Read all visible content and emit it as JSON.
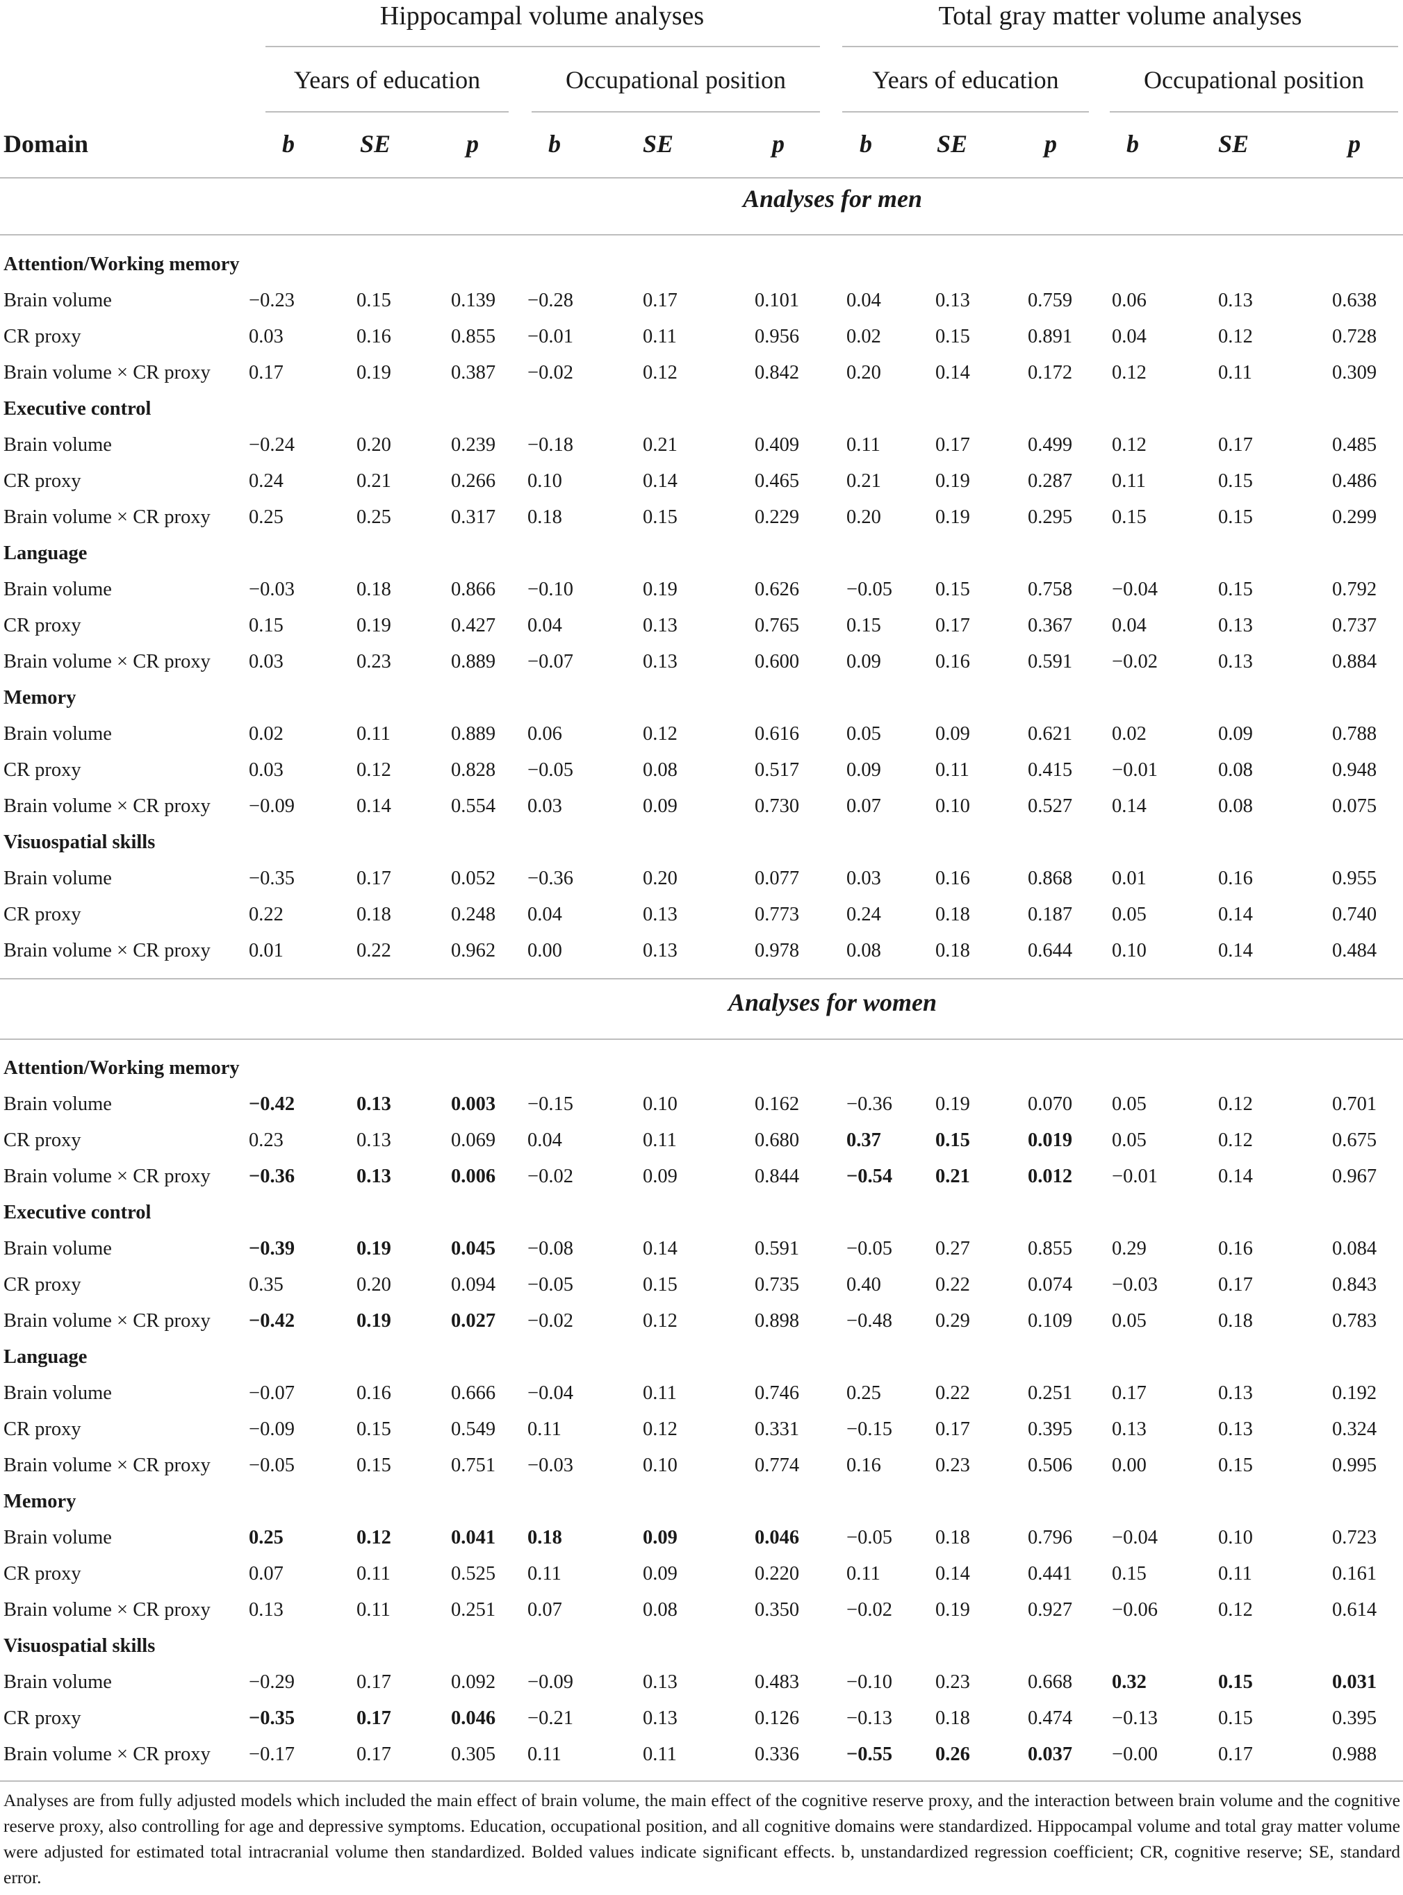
{
  "header": {
    "groups": [
      "Hippocampal volume analyses",
      "Total gray matter volume analyses"
    ],
    "subgroups": [
      "Years of education",
      "Occupational position",
      "Years of education",
      "Occupational position"
    ],
    "domain_label": "Domain",
    "stat_labels": [
      "b",
      "SE",
      "p",
      "b",
      "SE",
      "p",
      "b",
      "SE",
      "p",
      "b",
      "SE",
      "p"
    ]
  },
  "sections": [
    {
      "title": "Analyses for men",
      "domains": [
        {
          "name": "Attention/Working memory",
          "rows": [
            {
              "label": "Brain volume",
              "values": [
                "−0.23",
                "0.15",
                "0.139",
                "−0.28",
                "0.17",
                "0.101",
                "0.04",
                "0.13",
                "0.759",
                "0.06",
                "0.13",
                "0.638"
              ],
              "bold": []
            },
            {
              "label": "CR proxy",
              "values": [
                "0.03",
                "0.16",
                "0.855",
                "−0.01",
                "0.11",
                "0.956",
                "0.02",
                "0.15",
                "0.891",
                "0.04",
                "0.12",
                "0.728"
              ],
              "bold": []
            },
            {
              "label": "Brain volume × CR proxy",
              "values": [
                "0.17",
                "0.19",
                "0.387",
                "−0.02",
                "0.12",
                "0.842",
                "0.20",
                "0.14",
                "0.172",
                "0.12",
                "0.11",
                "0.309"
              ],
              "bold": []
            }
          ]
        },
        {
          "name": "Executive control",
          "rows": [
            {
              "label": "Brain volume",
              "values": [
                "−0.24",
                "0.20",
                "0.239",
                "−0.18",
                "0.21",
                "0.409",
                "0.11",
                "0.17",
                "0.499",
                "0.12",
                "0.17",
                "0.485"
              ],
              "bold": []
            },
            {
              "label": "CR proxy",
              "values": [
                "0.24",
                "0.21",
                "0.266",
                "0.10",
                "0.14",
                "0.465",
                "0.21",
                "0.19",
                "0.287",
                "0.11",
                "0.15",
                "0.486"
              ],
              "bold": []
            },
            {
              "label": "Brain volume × CR proxy",
              "values": [
                "0.25",
                "0.25",
                "0.317",
                "0.18",
                "0.15",
                "0.229",
                "0.20",
                "0.19",
                "0.295",
                "0.15",
                "0.15",
                "0.299"
              ],
              "bold": []
            }
          ]
        },
        {
          "name": "Language",
          "rows": [
            {
              "label": "Brain volume",
              "values": [
                "−0.03",
                "0.18",
                "0.866",
                "−0.10",
                "0.19",
                "0.626",
                "−0.05",
                "0.15",
                "0.758",
                "−0.04",
                "0.15",
                "0.792"
              ],
              "bold": []
            },
            {
              "label": "CR proxy",
              "values": [
                "0.15",
                "0.19",
                "0.427",
                "0.04",
                "0.13",
                "0.765",
                "0.15",
                "0.17",
                "0.367",
                "0.04",
                "0.13",
                "0.737"
              ],
              "bold": []
            },
            {
              "label": "Brain volume × CR proxy",
              "values": [
                "0.03",
                "0.23",
                "0.889",
                "−0.07",
                "0.13",
                "0.600",
                "0.09",
                "0.16",
                "0.591",
                "−0.02",
                "0.13",
                "0.884"
              ],
              "bold": []
            }
          ]
        },
        {
          "name": "Memory",
          "rows": [
            {
              "label": "Brain volume",
              "values": [
                "0.02",
                "0.11",
                "0.889",
                "0.06",
                "0.12",
                "0.616",
                "0.05",
                "0.09",
                "0.621",
                "0.02",
                "0.09",
                "0.788"
              ],
              "bold": []
            },
            {
              "label": "CR proxy",
              "values": [
                "0.03",
                "0.12",
                "0.828",
                "−0.05",
                "0.08",
                "0.517",
                "0.09",
                "0.11",
                "0.415",
                "−0.01",
                "0.08",
                "0.948"
              ],
              "bold": []
            },
            {
              "label": "Brain volume × CR proxy",
              "values": [
                "−0.09",
                "0.14",
                "0.554",
                "0.03",
                "0.09",
                "0.730",
                "0.07",
                "0.10",
                "0.527",
                "0.14",
                "0.08",
                "0.075"
              ],
              "bold": []
            }
          ]
        },
        {
          "name": "Visuospatial skills",
          "rows": [
            {
              "label": "Brain volume",
              "values": [
                "−0.35",
                "0.17",
                "0.052",
                "−0.36",
                "0.20",
                "0.077",
                "0.03",
                "0.16",
                "0.868",
                "0.01",
                "0.16",
                "0.955"
              ],
              "bold": []
            },
            {
              "label": "CR proxy",
              "values": [
                "0.22",
                "0.18",
                "0.248",
                "0.04",
                "0.13",
                "0.773",
                "0.24",
                "0.18",
                "0.187",
                "0.05",
                "0.14",
                "0.740"
              ],
              "bold": []
            },
            {
              "label": "Brain volume × CR proxy",
              "values": [
                "0.01",
                "0.22",
                "0.962",
                "0.00",
                "0.13",
                "0.978",
                "0.08",
                "0.18",
                "0.644",
                "0.10",
                "0.14",
                "0.484"
              ],
              "bold": []
            }
          ]
        }
      ]
    },
    {
      "title": "Analyses for women",
      "domains": [
        {
          "name": "Attention/Working memory",
          "rows": [
            {
              "label": "Brain volume",
              "values": [
                "−0.42",
                "0.13",
                "0.003",
                "−0.15",
                "0.10",
                "0.162",
                "−0.36",
                "0.19",
                "0.070",
                "0.05",
                "0.12",
                "0.701"
              ],
              "bold": [
                0,
                1,
                2
              ]
            },
            {
              "label": "CR proxy",
              "values": [
                "0.23",
                "0.13",
                "0.069",
                "0.04",
                "0.11",
                "0.680",
                "0.37",
                "0.15",
                "0.019",
                "0.05",
                "0.12",
                "0.675"
              ],
              "bold": [
                6,
                7,
                8
              ]
            },
            {
              "label": "Brain volume × CR proxy",
              "values": [
                "−0.36",
                "0.13",
                "0.006",
                "−0.02",
                "0.09",
                "0.844",
                "−0.54",
                "0.21",
                "0.012",
                "−0.01",
                "0.14",
                "0.967"
              ],
              "bold": [
                0,
                1,
                2,
                6,
                7,
                8
              ]
            }
          ]
        },
        {
          "name": "Executive control",
          "rows": [
            {
              "label": "Brain volume",
              "values": [
                "−0.39",
                "0.19",
                "0.045",
                "−0.08",
                "0.14",
                "0.591",
                "−0.05",
                "0.27",
                "0.855",
                "0.29",
                "0.16",
                "0.084"
              ],
              "bold": [
                0,
                1,
                2
              ]
            },
            {
              "label": "CR proxy",
              "values": [
                "0.35",
                "0.20",
                "0.094",
                "−0.05",
                "0.15",
                "0.735",
                "0.40",
                "0.22",
                "0.074",
                "−0.03",
                "0.17",
                "0.843"
              ],
              "bold": []
            },
            {
              "label": "Brain volume × CR proxy",
              "values": [
                "−0.42",
                "0.19",
                "0.027",
                "−0.02",
                "0.12",
                "0.898",
                "−0.48",
                "0.29",
                "0.109",
                "0.05",
                "0.18",
                "0.783"
              ],
              "bold": [
                0,
                1,
                2
              ]
            }
          ]
        },
        {
          "name": "Language",
          "rows": [
            {
              "label": "Brain volume",
              "values": [
                "−0.07",
                "0.16",
                "0.666",
                "−0.04",
                "0.11",
                "0.746",
                "0.25",
                "0.22",
                "0.251",
                "0.17",
                "0.13",
                "0.192"
              ],
              "bold": []
            },
            {
              "label": "CR proxy",
              "values": [
                "−0.09",
                "0.15",
                "0.549",
                "0.11",
                "0.12",
                "0.331",
                "−0.15",
                "0.17",
                "0.395",
                "0.13",
                "0.13",
                "0.324"
              ],
              "bold": []
            },
            {
              "label": "Brain volume × CR proxy",
              "values": [
                "−0.05",
                "0.15",
                "0.751",
                "−0.03",
                "0.10",
                "0.774",
                "0.16",
                "0.23",
                "0.506",
                "0.00",
                "0.15",
                "0.995"
              ],
              "bold": []
            }
          ]
        },
        {
          "name": "Memory",
          "rows": [
            {
              "label": "Brain volume",
              "values": [
                "0.25",
                "0.12",
                "0.041",
                "0.18",
                "0.09",
                "0.046",
                "−0.05",
                "0.18",
                "0.796",
                "−0.04",
                "0.10",
                "0.723"
              ],
              "bold": [
                0,
                1,
                2,
                3,
                4,
                5
              ]
            },
            {
              "label": "CR proxy",
              "values": [
                "0.07",
                "0.11",
                "0.525",
                "0.11",
                "0.09",
                "0.220",
                "0.11",
                "0.14",
                "0.441",
                "0.15",
                "0.11",
                "0.161"
              ],
              "bold": []
            },
            {
              "label": "Brain volume × CR proxy",
              "values": [
                "0.13",
                "0.11",
                "0.251",
                "0.07",
                "0.08",
                "0.350",
                "−0.02",
                "0.19",
                "0.927",
                "−0.06",
                "0.12",
                "0.614"
              ],
              "bold": []
            }
          ]
        },
        {
          "name": "Visuospatial skills",
          "rows": [
            {
              "label": "Brain volume",
              "values": [
                "−0.29",
                "0.17",
                "0.092",
                "−0.09",
                "0.13",
                "0.483",
                "−0.10",
                "0.23",
                "0.668",
                "0.32",
                "0.15",
                "0.031"
              ],
              "bold": [
                9,
                10,
                11
              ]
            },
            {
              "label": "CR proxy",
              "values": [
                "−0.35",
                "0.17",
                "0.046",
                "−0.21",
                "0.13",
                "0.126",
                "−0.13",
                "0.18",
                "0.474",
                "−0.13",
                "0.15",
                "0.395"
              ],
              "bold": [
                0,
                1,
                2
              ]
            },
            {
              "label": "Brain volume × CR proxy",
              "values": [
                "−0.17",
                "0.17",
                "0.305",
                "0.11",
                "0.11",
                "0.336",
                "−0.55",
                "0.26",
                "0.037",
                "−0.00",
                "0.17",
                "0.988"
              ],
              "bold": [
                6,
                7,
                8
              ]
            }
          ]
        }
      ]
    }
  ],
  "footnote": "Analyses are from fully adjusted models which included the main effect of brain volume, the main effect of the cognitive reserve proxy, and the interaction between brain volume and the cognitive reserve proxy, also controlling for age and depressive symptoms. Education, occupational position, and all cognitive domains were standardized. Hippocampal volume and total gray matter volume were adjusted for estimated total intracranial volume then standardized. Bolded values indicate significant effects. b, unstandardized regression coefficient; CR, cognitive reserve; SE, standard error."
}
